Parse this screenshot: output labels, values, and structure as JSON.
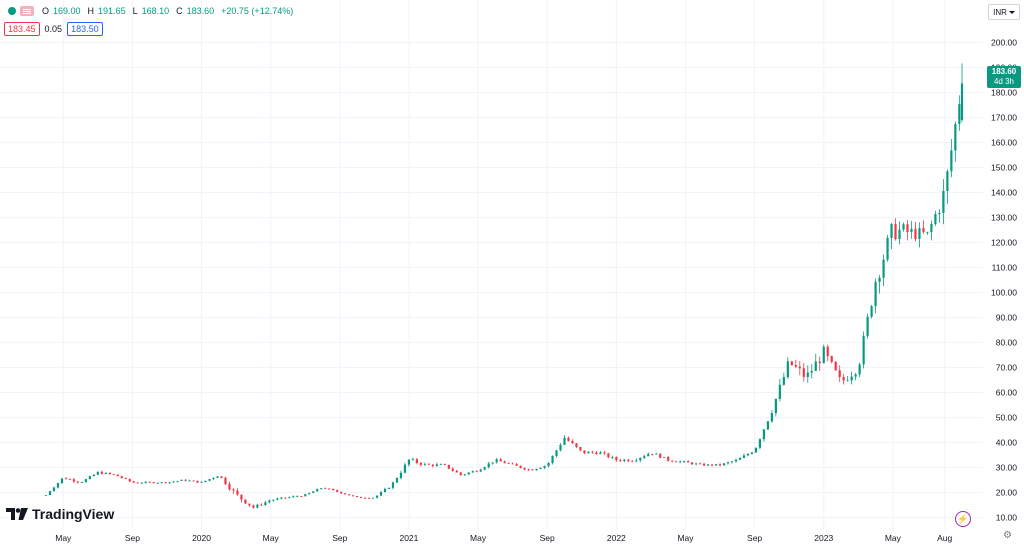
{
  "header": {
    "open_label": "O",
    "open": "169.00",
    "high_label": "H",
    "high": "191.65",
    "low_label": "L",
    "low": "168.10",
    "close_label": "C",
    "close": "183.60",
    "change": "+20.75 (+12.74%)"
  },
  "quotes": {
    "bid": "183.45",
    "spread": "0.05",
    "ask": "183.50"
  },
  "currency": {
    "label": "INR"
  },
  "last_price": {
    "price": "183.60",
    "countdown": "4d 3h"
  },
  "brand": {
    "name": "TradingView"
  },
  "colors": {
    "up": "#089981",
    "down": "#f23645",
    "grid": "#f0f3fa",
    "text": "#131722"
  },
  "chart_data": {
    "type": "candlestick",
    "title": "",
    "xlabel": "",
    "ylabel": "",
    "currency": "INR",
    "ylim": [
      5,
      205
    ],
    "y_ticks": [
      "200.00",
      "190.00",
      "180.00",
      "170.00",
      "160.00",
      "150.00",
      "140.00",
      "130.00",
      "120.00",
      "110.00",
      "100.00",
      "90.00",
      "80.00",
      "70.00",
      "60.00",
      "50.00",
      "40.00",
      "30.00",
      "20.00",
      "10.00"
    ],
    "x_ticks": [
      "May",
      "Sep",
      "2020",
      "May",
      "Sep",
      "2021",
      "May",
      "Sep",
      "2022",
      "May",
      "Sep",
      "2023",
      "May",
      "Aug"
    ],
    "x_range": [
      "2019-04",
      "2023-09"
    ],
    "grid": true,
    "interval": "weekly",
    "anchors": [
      [
        "2019-04",
        19,
        0
      ],
      [
        "2019-05",
        26,
        1
      ],
      [
        "2019-06",
        24,
        0.5
      ],
      [
        "2019-07",
        28,
        0.8
      ],
      [
        "2019-08",
        27,
        0.5
      ],
      [
        "2019-09",
        24,
        0.5
      ],
      [
        "2019-11",
        24,
        0.4
      ],
      [
        "2019-12",
        25,
        0.5
      ],
      [
        "2020-01",
        24,
        0.5
      ],
      [
        "2020-02",
        27,
        0.7
      ],
      [
        "2020-03",
        19,
        2
      ],
      [
        "2020-04",
        14,
        1
      ],
      [
        "2020-05",
        17,
        0.6
      ],
      [
        "2020-07",
        19,
        0.5
      ],
      [
        "2020-08",
        22,
        0.5
      ],
      [
        "2020-09",
        20,
        0.4
      ],
      [
        "2020-10",
        18,
        0.4
      ],
      [
        "2020-11",
        18,
        0.5
      ],
      [
        "2020-12",
        23,
        0.8
      ],
      [
        "2021-01",
        33,
        1.5
      ],
      [
        "2021-02",
        31,
        1
      ],
      [
        "2021-03",
        31,
        0.8
      ],
      [
        "2021-04",
        27,
        0.8
      ],
      [
        "2021-05",
        29,
        0.8
      ],
      [
        "2021-06",
        33,
        0.8
      ],
      [
        "2021-07",
        31,
        0.8
      ],
      [
        "2021-08",
        29,
        0.8
      ],
      [
        "2021-09",
        31,
        0.8
      ],
      [
        "2021-10",
        42,
        1.5
      ],
      [
        "2021-11",
        36,
        1.2
      ],
      [
        "2021-12",
        36,
        1
      ],
      [
        "2022-01",
        33,
        1
      ],
      [
        "2022-02",
        33,
        1
      ],
      [
        "2022-03",
        36,
        1
      ],
      [
        "2022-04",
        33,
        0.8
      ],
      [
        "2022-05",
        32,
        0.8
      ],
      [
        "2022-06",
        31,
        0.6
      ],
      [
        "2022-07",
        31,
        0.6
      ],
      [
        "2022-08",
        33,
        0.8
      ],
      [
        "2022-09",
        37,
        1
      ],
      [
        "2022-10",
        53,
        2.5
      ],
      [
        "2022-11",
        72,
        4
      ],
      [
        "2022-12",
        66,
        4
      ],
      [
        "2023-01",
        76,
        4
      ],
      [
        "2023-02",
        64,
        3
      ],
      [
        "2023-03",
        70,
        3
      ],
      [
        "2023-04",
        105,
        6
      ],
      [
        "2023-05",
        125,
        7
      ],
      [
        "2023-06",
        124,
        5
      ],
      [
        "2023-07",
        123,
        4
      ],
      [
        "2023-08",
        140,
        8
      ],
      [
        "2023-09",
        183.6,
        6
      ]
    ],
    "last_candle": {
      "date": "2023-09",
      "open": 169.0,
      "high": 191.65,
      "low": 168.1,
      "close": 183.6
    }
  }
}
